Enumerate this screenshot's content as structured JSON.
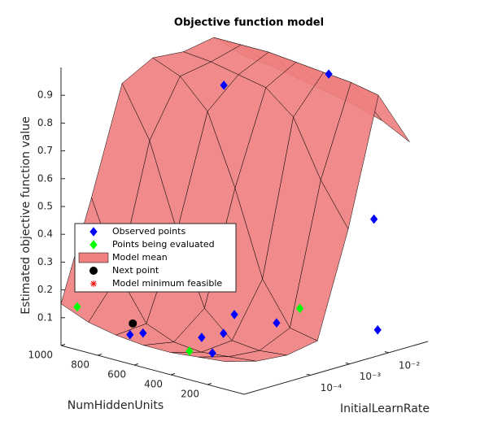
{
  "chart_data": {
    "type": "surface3d",
    "title": "Objective function model",
    "xlabel": "InitialLearnRate",
    "ylabel": "NumHiddenUnits",
    "zlabel": "Estimated objective function value",
    "xscale": "log",
    "xlim": [
      2e-06,
      0.1
    ],
    "ylim": [
      0,
      1000
    ],
    "zlim": [
      0,
      1
    ],
    "xticks": [
      {
        "value": 0.0001,
        "label": "10⁻⁴"
      },
      {
        "value": 0.001,
        "label": "10⁻³"
      },
      {
        "value": 0.01,
        "label": "10⁻²"
      }
    ],
    "yticks": [
      200,
      400,
      600,
      800,
      1000
    ],
    "zticks": [
      0.1,
      0.2,
      0.3,
      0.4,
      0.5,
      0.6,
      0.7,
      0.8,
      0.9
    ],
    "legend_position": "upper left",
    "surface": {
      "name": "Model mean",
      "color": "#f08080",
      "x": [
        2e-06,
        1.2e-05,
        7.3e-05,
        0.00044,
        0.0027,
        0.016,
        0.1
      ],
      "y": [
        100,
        250,
        400,
        550,
        700,
        850,
        1000
      ],
      "z": [
        [
          0.1,
          0.07,
          0.06,
          0.08,
          0.45,
          0.9,
          0.7
        ],
        [
          0.09,
          0.06,
          0.05,
          0.1,
          0.6,
          0.92,
          0.75
        ],
        [
          0.08,
          0.05,
          0.06,
          0.25,
          0.8,
          0.93,
          0.78
        ],
        [
          0.08,
          0.06,
          0.15,
          0.55,
          0.88,
          0.94,
          0.8
        ],
        [
          0.09,
          0.1,
          0.4,
          0.8,
          0.9,
          0.95,
          0.82
        ],
        [
          0.11,
          0.25,
          0.7,
          0.9,
          0.92,
          0.95,
          0.84
        ],
        [
          0.15,
          0.5,
          0.88,
          0.94,
          0.93,
          0.95,
          0.85
        ]
      ]
    },
    "series": [
      {
        "name": "Observed points",
        "color": "#0000ff",
        "marker": "diamond",
        "x": [
          0.0085,
          0.00024,
          0.012,
          0.014,
          1.5e-05,
          4.2e-06,
          0.00021,
          0.00069,
          3.2e-05,
          7.2e-06,
          9.1e-05
        ],
        "y": [
          313,
          555,
          98,
          92,
          360,
          692,
          485,
          365,
          489,
          671,
          467
        ],
        "z": [
          0.95,
          0.93,
          0.46,
          0.06,
          0.05,
          0.08,
          0.12,
          0.09,
          0.07,
          0.08,
          0.07
        ]
      },
      {
        "name": "Points being evaluated",
        "color": "#00ff00",
        "marker": "diamond",
        "x": [
          0.0019,
          4.1e-06,
          9.5e-06
        ],
        "y": [
          332,
          978,
          443
        ],
        "z": [
          0.13,
          0.13,
          0.05
        ]
      },
      {
        "name": "Next point",
        "color": "#000000",
        "marker": "circle",
        "x": [
          8.3e-06
        ],
        "y": [
          740
        ],
        "z": [
          0.1
        ]
      },
      {
        "name": "Model minimum feasible",
        "color": "#ff0000",
        "marker": "asterisk",
        "x": [],
        "y": [],
        "z": []
      }
    ]
  }
}
